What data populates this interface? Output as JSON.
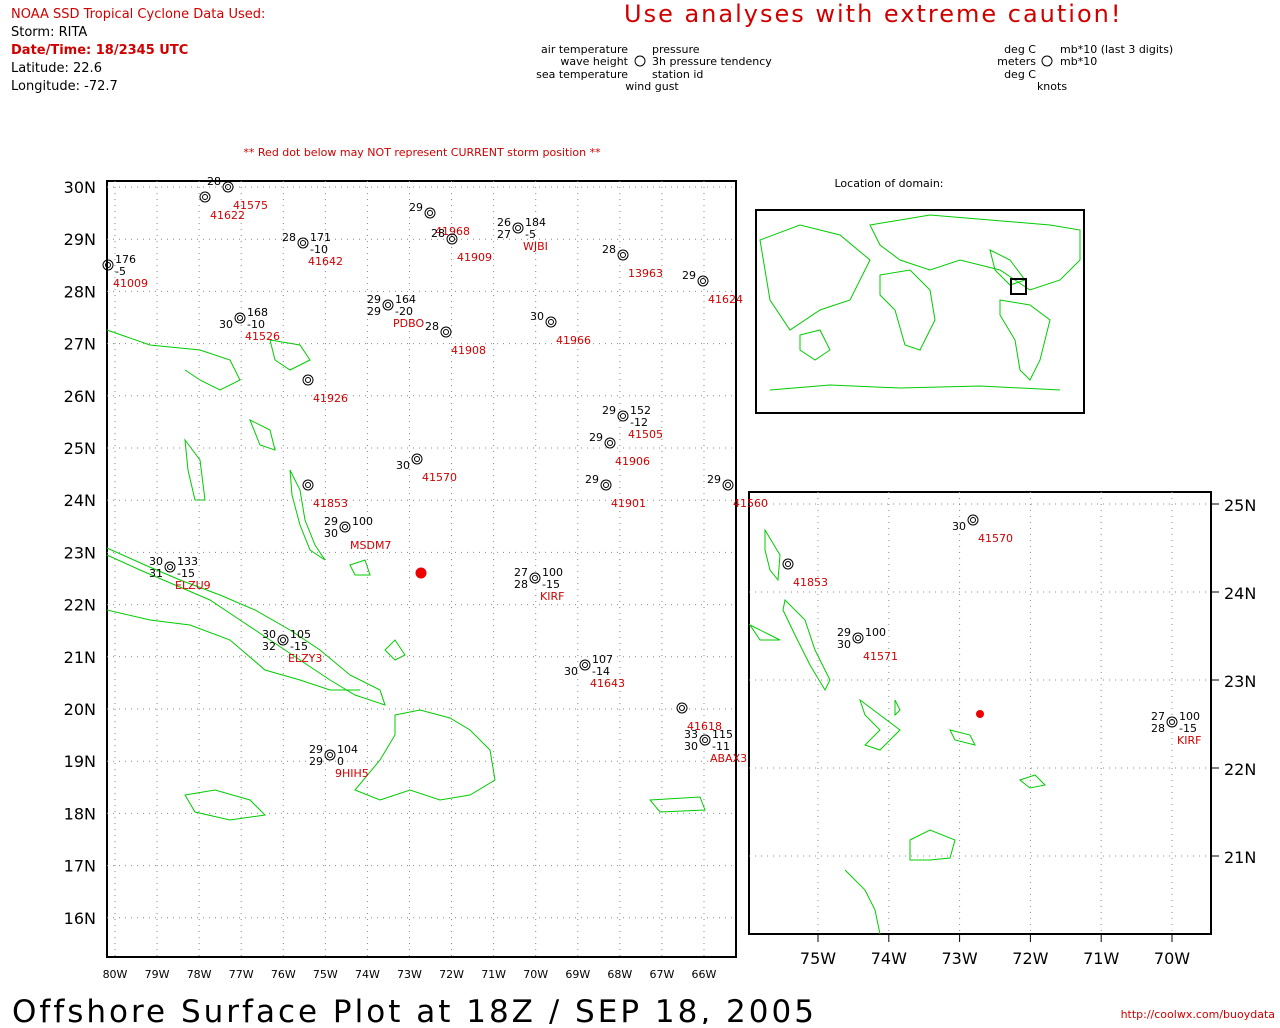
{
  "header": {
    "source": "NOAA SSD Tropical Cyclone Data Used:",
    "storm": "Storm: RITA",
    "datetime": "Date/Time: 18/2345 UTC",
    "latitude": "Latitude: 22.6",
    "longitude": "Longitude: -72.7"
  },
  "warning": "Use analyses with extreme caution!",
  "legend": {
    "air_temperature": "air temperature",
    "pressure": "pressure",
    "wave_height": "wave height",
    "pressure_tendency": "3h pressure tendency",
    "sea_temperature": "sea temperature",
    "station_id": "station id",
    "wind_gust": "wind gust",
    "units": {
      "air_temperature": "deg C",
      "pressure": "mb*10 (last 3 digits)",
      "wave_height": "meters",
      "pressure_tendency": "mb*10",
      "sea_temperature": "deg C",
      "wind_gust": "knots"
    }
  },
  "note": "** Red dot below may NOT represent CURRENT storm position **",
  "main_map": {
    "lat_labels": [
      "30N",
      "29N",
      "28N",
      "27N",
      "26N",
      "25N",
      "24N",
      "23N",
      "22N",
      "21N",
      "20N",
      "19N",
      "18N",
      "17N",
      "16N"
    ],
    "lon_labels": [
      "80W",
      "79W",
      "78W",
      "77W",
      "76W",
      "75W",
      "74W",
      "73W",
      "72W",
      "71W",
      "70W",
      "69W",
      "68W",
      "67W",
      "66W"
    ],
    "stations": [
      {
        "id": "41575",
        "air": "28"
      },
      {
        "id": "41622"
      },
      {
        "id": "41009",
        "pressure": "176",
        "tendency": "-5"
      },
      {
        "id": "41642",
        "air": "28",
        "pressure": "171",
        "tendency": "-10"
      },
      {
        "id": "41968",
        "air": "29"
      },
      {
        "id": "41909",
        "air": "28"
      },
      {
        "id": "WJBI",
        "air": "26",
        "pressure": "184",
        "sea": "27",
        "tendency": "-5"
      },
      {
        "id": "13963",
        "air": "28"
      },
      {
        "id": "41624",
        "air": "29"
      },
      {
        "id": "PDBO",
        "air": "29",
        "pressure": "164",
        "sea": "29",
        "tendency": "-20"
      },
      {
        "id": "41908",
        "air": "28"
      },
      {
        "id": "41966",
        "air": "30"
      },
      {
        "id": "41526",
        "pressure": "168",
        "sea": "30",
        "tendency": "-10"
      },
      {
        "id": "41926"
      },
      {
        "id": "41505",
        "air": "29",
        "pressure": "152",
        "tendency": "-12"
      },
      {
        "id": "41906",
        "air": "29"
      },
      {
        "id": "41570",
        "sea": "30"
      },
      {
        "id": "41853"
      },
      {
        "id": "41901",
        "air": "29"
      },
      {
        "id": "41560",
        "air": "29"
      },
      {
        "id": "MSDM7",
        "air": "29",
        "pressure": "100",
        "sea": "30"
      },
      {
        "id": "ELZU9",
        "air": "30",
        "pressure": "133",
        "sea": "31",
        "tendency": "-15"
      },
      {
        "id": "KIRF",
        "air": "27",
        "pressure": "100",
        "sea": "28",
        "tendency": "-15"
      },
      {
        "id": "ELZY3",
        "air": "30",
        "pressure": "105",
        "sea": "32",
        "tendency": "-15"
      },
      {
        "id": "41643",
        "pressure": "107",
        "sea": "30",
        "tendency": "-14"
      },
      {
        "id": "41618"
      },
      {
        "id": "ABAX3",
        "air": "33",
        "pressure": "115",
        "sea": "30",
        "tendency": "-11"
      },
      {
        "id": "9HIH5",
        "air": "29",
        "pressure": "104",
        "sea": "29",
        "tendency": "0"
      }
    ]
  },
  "locator": {
    "title": "Location of domain:"
  },
  "inset_map": {
    "lat_labels": [
      "25N",
      "24N",
      "23N",
      "22N",
      "21N"
    ],
    "lon_labels": [
      "75W",
      "74W",
      "73W",
      "72W",
      "71W",
      "70W"
    ],
    "stations": [
      {
        "id": "41570",
        "sea": "30"
      },
      {
        "id": "41853"
      },
      {
        "id": "41571",
        "air": "29",
        "pressure": "100",
        "sea": "30"
      },
      {
        "id": "KIRF",
        "air": "27",
        "pressure": "100",
        "sea": "28",
        "tendency": "-15"
      }
    ]
  },
  "footer": {
    "title": "Offshore Surface Plot at 18Z / SEP 18, 2005",
    "url": "http://coolwx.com/buoydata"
  }
}
